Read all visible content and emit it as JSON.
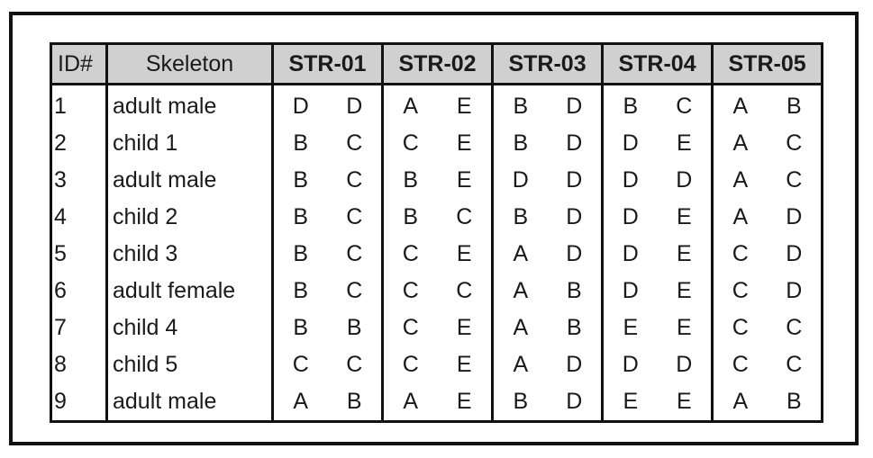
{
  "table": {
    "headers": {
      "id": "ID#",
      "skeleton": "Skeleton",
      "loci": [
        "STR-01",
        "STR-02",
        "STR-03",
        "STR-04",
        "STR-05"
      ]
    },
    "rows": [
      {
        "id": "1",
        "skeleton": "adult male",
        "alleles": [
          [
            "D",
            "D"
          ],
          [
            "A",
            "E"
          ],
          [
            "B",
            "D"
          ],
          [
            "B",
            "C"
          ],
          [
            "A",
            "B"
          ]
        ]
      },
      {
        "id": "2",
        "skeleton": "child 1",
        "alleles": [
          [
            "B",
            "C"
          ],
          [
            "C",
            "E"
          ],
          [
            "B",
            "D"
          ],
          [
            "D",
            "E"
          ],
          [
            "A",
            "C"
          ]
        ]
      },
      {
        "id": "3",
        "skeleton": "adult male",
        "alleles": [
          [
            "B",
            "C"
          ],
          [
            "B",
            "E"
          ],
          [
            "D",
            "D"
          ],
          [
            "D",
            "D"
          ],
          [
            "A",
            "C"
          ]
        ]
      },
      {
        "id": "4",
        "skeleton": "child 2",
        "alleles": [
          [
            "B",
            "C"
          ],
          [
            "B",
            "C"
          ],
          [
            "B",
            "D"
          ],
          [
            "D",
            "E"
          ],
          [
            "A",
            "D"
          ]
        ]
      },
      {
        "id": "5",
        "skeleton": "child 3",
        "alleles": [
          [
            "B",
            "C"
          ],
          [
            "C",
            "E"
          ],
          [
            "A",
            "D"
          ],
          [
            "D",
            "E"
          ],
          [
            "C",
            "D"
          ]
        ]
      },
      {
        "id": "6",
        "skeleton": "adult female",
        "alleles": [
          [
            "B",
            "C"
          ],
          [
            "C",
            "C"
          ],
          [
            "A",
            "B"
          ],
          [
            "D",
            "E"
          ],
          [
            "C",
            "D"
          ]
        ]
      },
      {
        "id": "7",
        "skeleton": "child 4",
        "alleles": [
          [
            "B",
            "B"
          ],
          [
            "C",
            "E"
          ],
          [
            "A",
            "B"
          ],
          [
            "E",
            "E"
          ],
          [
            "C",
            "C"
          ]
        ]
      },
      {
        "id": "8",
        "skeleton": "child 5",
        "alleles": [
          [
            "C",
            "C"
          ],
          [
            "C",
            "E"
          ],
          [
            "A",
            "D"
          ],
          [
            "D",
            "D"
          ],
          [
            "C",
            "C"
          ]
        ]
      },
      {
        "id": "9",
        "skeleton": "adult male",
        "alleles": [
          [
            "A",
            "B"
          ],
          [
            "A",
            "E"
          ],
          [
            "B",
            "D"
          ],
          [
            "E",
            "E"
          ],
          [
            "A",
            "B"
          ]
        ]
      }
    ]
  },
  "colors": {
    "header_background": "#d0d0d0",
    "border": "#111111",
    "text": "#1a1a1a"
  }
}
